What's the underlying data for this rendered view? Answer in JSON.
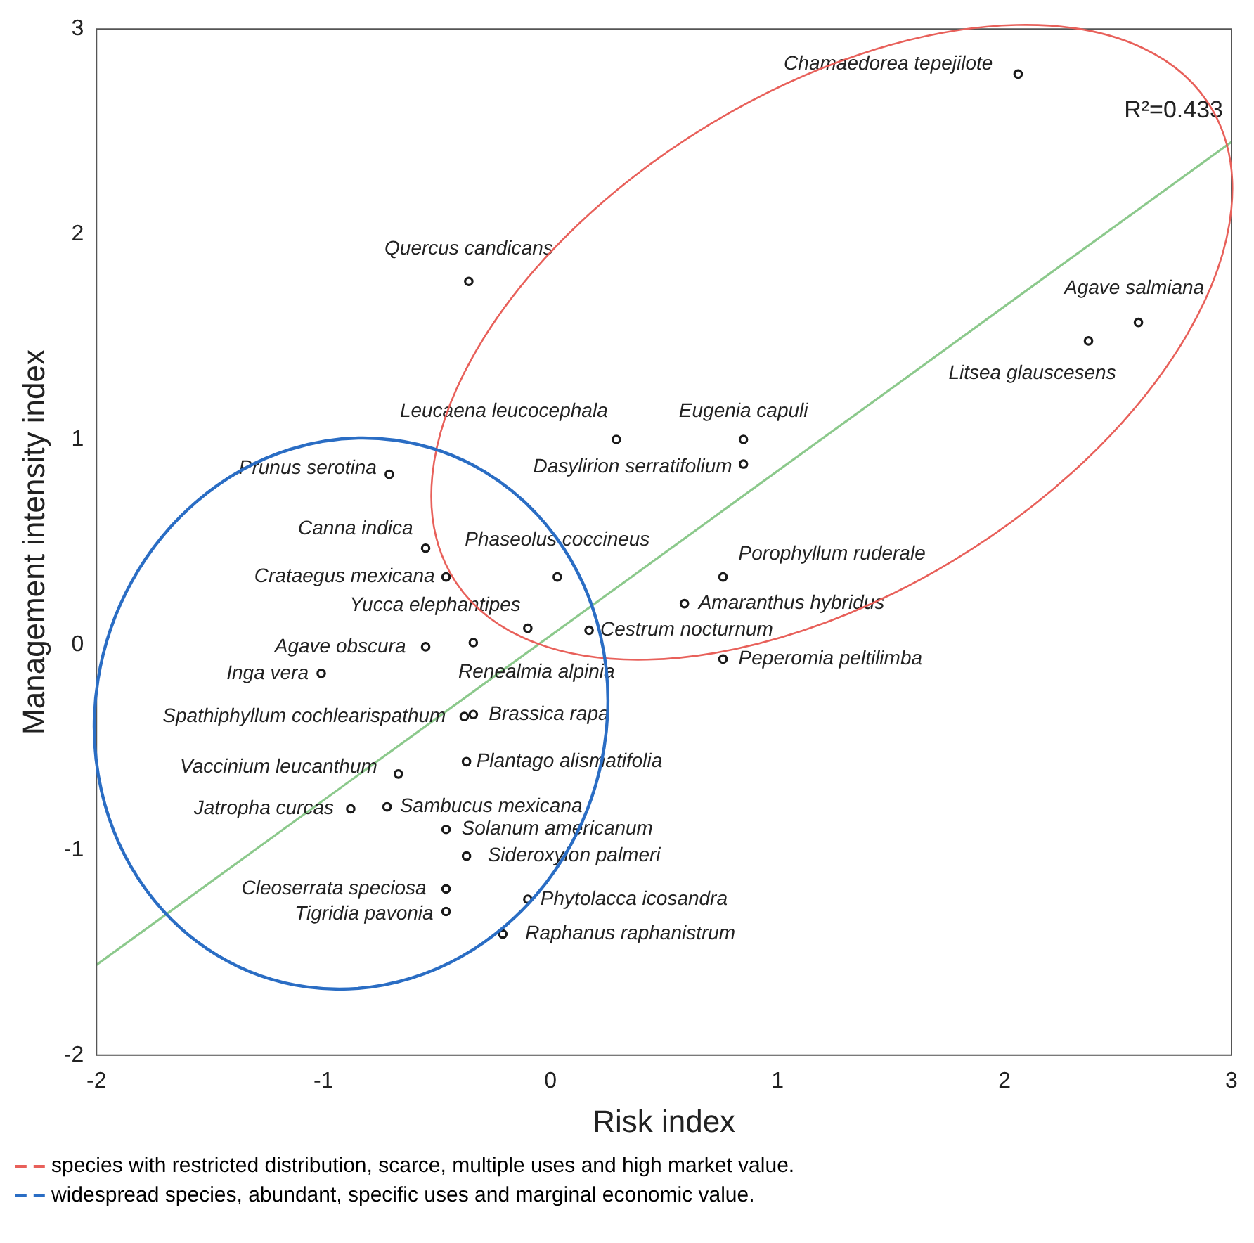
{
  "chart_data": {
    "type": "scatter",
    "xlabel": "Risk index",
    "ylabel": "Management intensity index",
    "xlim": [
      -2,
      3
    ],
    "ylim": [
      -2,
      3
    ],
    "xticks": [
      -2,
      -1,
      0,
      1,
      2,
      3
    ],
    "yticks": [
      -2,
      -1,
      0,
      1,
      2,
      3
    ],
    "grid": false,
    "legend": "bottom",
    "marker": "circle",
    "series": [
      {
        "color": "#1a1a1a",
        "x": [
          2.06,
          -0.36,
          2.59,
          2.37,
          0.29,
          0.85,
          0.85,
          -0.71,
          -0.55,
          0.03,
          -0.46,
          0.76,
          0.59,
          -0.1,
          0.17,
          -0.55,
          -0.34,
          0.76,
          -1.01,
          -0.38,
          -0.34,
          -0.37,
          -0.67,
          -0.88,
          -0.72,
          -0.46,
          -0.37,
          -0.46,
          -0.46,
          -0.1,
          -0.21
        ],
        "values": [
          2.78,
          1.77,
          1.57,
          1.48,
          1.0,
          1.0,
          0.88,
          0.83,
          0.47,
          0.33,
          0.33,
          0.33,
          0.2,
          0.08,
          0.07,
          -0.01,
          0.01,
          -0.07,
          -0.14,
          -0.35,
          -0.34,
          -0.57,
          -0.63,
          -0.8,
          -0.79,
          -0.9,
          -1.03,
          -1.19,
          -1.3,
          -1.24,
          -1.41
        ]
      },
      {
        "type": "line",
        "color": "#8cc98c",
        "marker": "none",
        "x": [
          -2,
          3
        ],
        "values": [
          -1.56,
          2.45
        ]
      },
      {
        "type": "line",
        "name": "species with restricted distribution, scarce, multiple uses and high market value.",
        "color": "#e8605a",
        "line_style": "dashed"
      },
      {
        "type": "line",
        "name": "widespread species, abundant, specific uses and marginal economic value.",
        "color": "#2a6dc4",
        "line_style": "dashed"
      }
    ],
    "annotations": [
      {
        "text": "Chamaedorea tepejilote",
        "x": 2.06,
        "y": 2.78
      },
      {
        "text": "Quercus candicans",
        "x": -0.36,
        "y": 1.77
      },
      {
        "text": "Agave salmiana",
        "x": 2.59,
        "y": 1.57
      },
      {
        "text": "Litsea glauscesens",
        "x": 2.37,
        "y": 1.48
      },
      {
        "text": "Leucaena leucocephala",
        "x": 0.29,
        "y": 1.0
      },
      {
        "text": "Eugenia capuli",
        "x": 0.85,
        "y": 1.0
      },
      {
        "text": "Dasylirion serratifolium",
        "x": 0.85,
        "y": 0.88
      },
      {
        "text": "Prunus serotina",
        "x": -0.71,
        "y": 0.83
      },
      {
        "text": "Canna indica",
        "x": -0.55,
        "y": 0.47
      },
      {
        "text": "Phaseolus coccineus",
        "x": 0.03,
        "y": 0.33
      },
      {
        "text": "Crataegus mexicana",
        "x": -0.46,
        "y": 0.33
      },
      {
        "text": "Porophyllum ruderale",
        "x": 0.76,
        "y": 0.33
      },
      {
        "text": "Amaranthus hybridus",
        "x": 0.59,
        "y": 0.2
      },
      {
        "text": "Yucca elephantipes",
        "x": -0.1,
        "y": 0.08
      },
      {
        "text": "Cestrum nocturnum",
        "x": 0.17,
        "y": 0.07
      },
      {
        "text": "Agave obscura",
        "x": -0.55,
        "y": -0.01
      },
      {
        "text": "Renealmia alpinia",
        "x": -0.34,
        "y": 0.01
      },
      {
        "text": "Peperomia peltilimba",
        "x": 0.76,
        "y": -0.07
      },
      {
        "text": "Inga vera",
        "x": -1.01,
        "y": -0.14
      },
      {
        "text": "Spathiphyllum cochlearispathum",
        "x": -0.38,
        "y": -0.35
      },
      {
        "text": "Brassica rapa",
        "x": -0.34,
        "y": -0.34
      },
      {
        "text": "Plantago alismatifolia",
        "x": -0.37,
        "y": -0.57
      },
      {
        "text": "Vaccinium leucanthum",
        "x": -0.67,
        "y": -0.63
      },
      {
        "text": "Jatropha curcas",
        "x": -0.88,
        "y": -0.8
      },
      {
        "text": "Sambucus mexicana",
        "x": -0.72,
        "y": -0.79
      },
      {
        "text": "Solanum americanum",
        "x": -0.46,
        "y": -0.9
      },
      {
        "text": "Sideroxylon palmeri",
        "x": -0.37,
        "y": -1.03
      },
      {
        "text": "Cleoserrata speciosa",
        "x": -0.46,
        "y": -1.19
      },
      {
        "text": "Tigridia pavonia",
        "x": -0.46,
        "y": -1.3
      },
      {
        "text": "Phytolacca icosandra",
        "x": -0.1,
        "y": -1.24
      },
      {
        "text": "Raphanus raphanistrum",
        "x": -0.21,
        "y": -1.41
      },
      "R²=0.433"
    ]
  }
}
